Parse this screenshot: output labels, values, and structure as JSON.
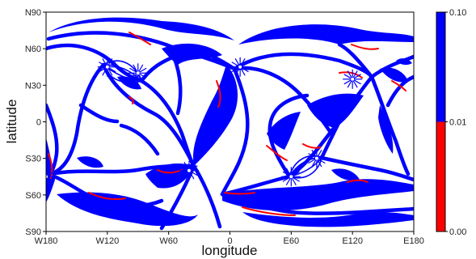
{
  "chart_data": {
    "type": "heatmap",
    "title": "",
    "xlabel": "longitude",
    "ylabel": "latitude",
    "x_ticks": [
      "W180",
      "W120",
      "W60",
      "0",
      "E60",
      "E120",
      "E180"
    ],
    "y_ticks": [
      "N90",
      "N60",
      "N30",
      "0",
      "S30",
      "S60",
      "S90"
    ],
    "xlim": [
      -180,
      180
    ],
    "ylim": [
      -90,
      90
    ],
    "grid": false,
    "colorbar": {
      "ticks": [
        "0.10",
        "0.01",
        "0.00"
      ],
      "levels": [
        {
          "from": 0.0,
          "to": 0.01,
          "color": "#ff0000"
        },
        {
          "from": 0.01,
          "to": 0.1,
          "color": "#0000ff"
        }
      ]
    },
    "focal_points": [
      {
        "lon": -120,
        "lat": 45
      },
      {
        "lon": -90,
        "lat": 40
      },
      {
        "lon": 10,
        "lat": 45
      },
      {
        "lon": 120,
        "lat": 35
      },
      {
        "lon": -180,
        "lat": -45
      },
      {
        "lon": -40,
        "lat": -40
      },
      {
        "lon": 60,
        "lat": -45
      },
      {
        "lon": 85,
        "lat": -30
      }
    ],
    "colors": {
      "high": "#0000ff",
      "low": "#ff0000",
      "background": "#ffffff"
    }
  }
}
